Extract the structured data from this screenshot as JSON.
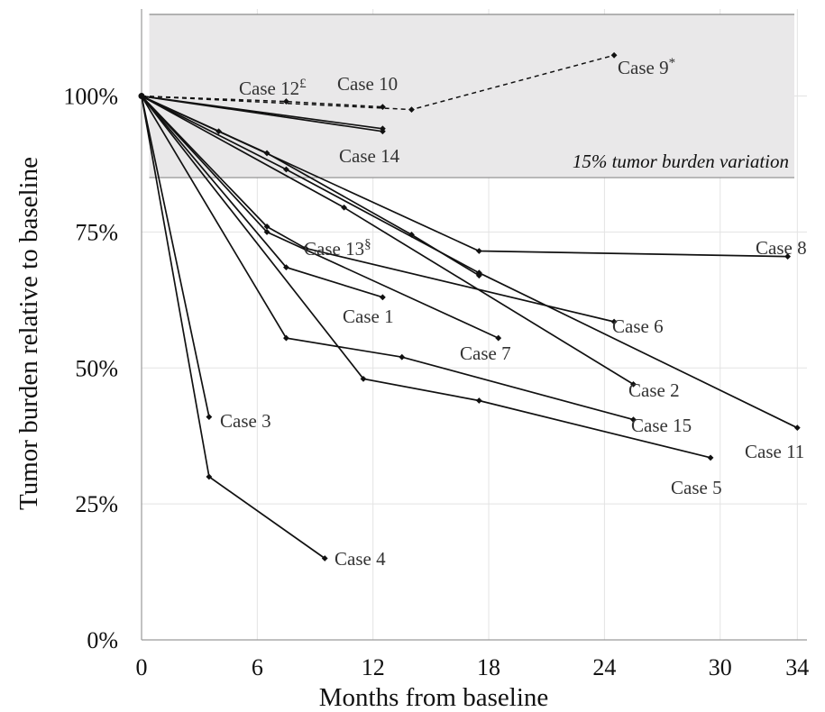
{
  "chart_data": {
    "type": "line",
    "title": "",
    "xlabel": "Months from baseline",
    "ylabel": "Tumor burden relative to baseline",
    "x_ticks": [
      0,
      6,
      12,
      18,
      24,
      30,
      34
    ],
    "y_ticks": [
      {
        "value": 0,
        "label": "0%"
      },
      {
        "value": 25,
        "label": "25%"
      },
      {
        "value": 50,
        "label": "50%"
      },
      {
        "value": 75,
        "label": "75%"
      },
      {
        "value": 100,
        "label": "100%"
      }
    ],
    "xlim": [
      0,
      34.5
    ],
    "ylim": [
      0,
      116
    ],
    "grid": true,
    "band": {
      "y0": 85,
      "y1": 115,
      "label": "15% tumor burden variation"
    },
    "series": [
      {
        "name": "Case 1",
        "label": "Case 1",
        "points": [
          [
            0,
            100
          ],
          [
            7.5,
            68.5
          ],
          [
            12.5,
            63
          ]
        ]
      },
      {
        "name": "Case 2",
        "label": "Case 2",
        "points": [
          [
            0,
            100
          ],
          [
            10.5,
            79.5
          ],
          [
            25.5,
            47
          ]
        ]
      },
      {
        "name": "Case 3",
        "label": "Case 3",
        "points": [
          [
            0,
            100
          ],
          [
            3.5,
            41
          ]
        ]
      },
      {
        "name": "Case 4",
        "label": "Case 4",
        "points": [
          [
            0,
            100
          ],
          [
            3.5,
            30
          ],
          [
            9.5,
            15
          ]
        ]
      },
      {
        "name": "Case 5",
        "label": "Case 5",
        "points": [
          [
            0,
            100
          ],
          [
            11.5,
            48
          ],
          [
            17.5,
            44
          ],
          [
            29.5,
            33.5
          ]
        ]
      },
      {
        "name": "Case 6",
        "label": "Case 6",
        "points": [
          [
            0,
            100
          ],
          [
            6.5,
            76
          ],
          [
            8.5,
            72
          ],
          [
            24.5,
            58.5
          ]
        ]
      },
      {
        "name": "Case 7",
        "label": "Case 7",
        "points": [
          [
            0,
            100
          ],
          [
            6.5,
            75
          ],
          [
            18.5,
            55.5
          ]
        ]
      },
      {
        "name": "Case 8",
        "label": "Case 8",
        "points": [
          [
            0,
            100
          ],
          [
            4,
            93.5
          ],
          [
            17.5,
            71.5
          ],
          [
            33.5,
            70.5
          ]
        ]
      },
      {
        "name": "Case 9",
        "label": "Case 9",
        "suffix": "*",
        "dashed": true,
        "points": [
          [
            0,
            100
          ],
          [
            14,
            97.5
          ],
          [
            24.5,
            107.5
          ]
        ]
      },
      {
        "name": "Case 10",
        "label": "Case 10",
        "points": [
          [
            0,
            100
          ],
          [
            12.5,
            94
          ]
        ]
      },
      {
        "name": "Case 11",
        "label": "Case 11",
        "points": [
          [
            0,
            100
          ],
          [
            7.5,
            86.5
          ],
          [
            17.5,
            67.5
          ],
          [
            34,
            39
          ]
        ]
      },
      {
        "name": "Case 12",
        "label": "Case 12",
        "suffix": "£",
        "dashed": true,
        "points": [
          [
            0,
            100
          ],
          [
            7.5,
            99
          ],
          [
            12.5,
            98
          ]
        ]
      },
      {
        "name": "Case 13",
        "label": "Case 13",
        "suffix": "§",
        "points": [
          [
            0,
            100
          ],
          [
            6.5,
            89.5
          ],
          [
            14,
            74.5
          ],
          [
            17.5,
            67
          ]
        ]
      },
      {
        "name": "Case 14",
        "label": "Case 14",
        "points": [
          [
            0,
            100
          ],
          [
            12.5,
            93.5
          ]
        ]
      },
      {
        "name": "Case 15",
        "label": "Case 15",
        "points": [
          [
            0,
            100
          ],
          [
            7.5,
            55.5
          ],
          [
            13.5,
            52
          ],
          [
            25.5,
            40.5
          ]
        ]
      }
    ],
    "annotations": [
      {
        "series": "Case 12",
        "text": "Case 12",
        "suffix": "£"
      },
      {
        "series": "Case 10",
        "text": "Case 10"
      },
      {
        "series": "Case 9",
        "text": "Case 9",
        "suffix": "*"
      },
      {
        "series": "Case 14",
        "text": "Case 14"
      },
      {
        "series": "Case 8",
        "text": "Case 8"
      },
      {
        "series": "Case 13",
        "text": "Case 13",
        "suffix": "§"
      },
      {
        "series": "Case 1",
        "text": "Case 1"
      },
      {
        "series": "Case 6",
        "text": "Case 6"
      },
      {
        "series": "Case 7",
        "text": "Case 7"
      },
      {
        "series": "Case 2",
        "text": "Case 2"
      },
      {
        "series": "Case 3",
        "text": "Case 3"
      },
      {
        "series": "Case 15",
        "text": "Case 15"
      },
      {
        "series": "Case 11",
        "text": "Case 11"
      },
      {
        "series": "Case 5",
        "text": "Case 5"
      },
      {
        "series": "Case 4",
        "text": "Case 4"
      }
    ]
  }
}
